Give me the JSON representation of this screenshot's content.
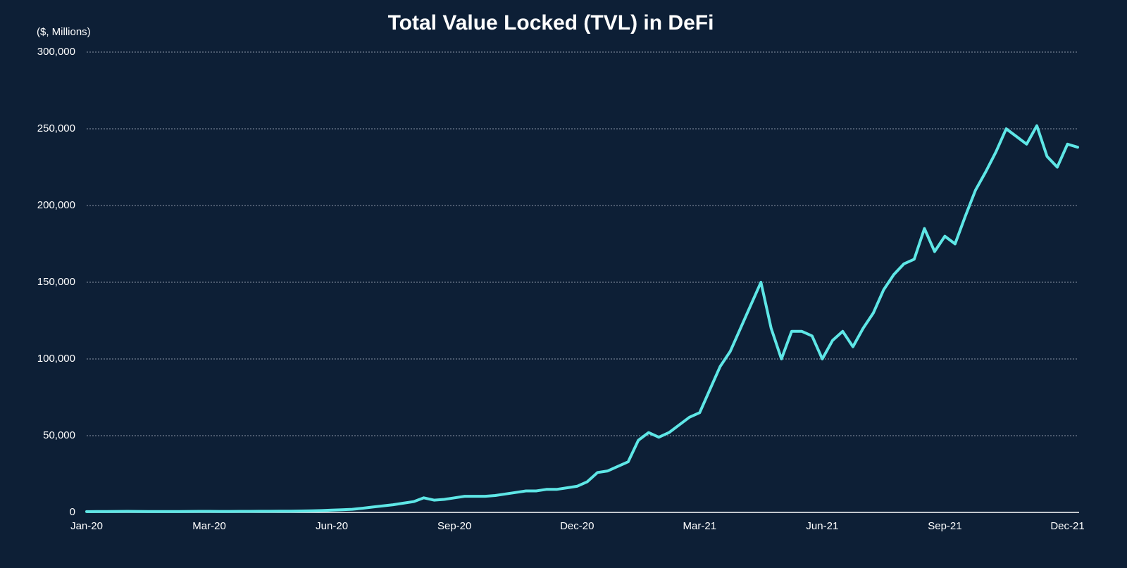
{
  "chart_data": {
    "type": "line",
    "title": "Total Value Locked (TVL) in DeFi",
    "y_label": "($, Millions)",
    "categories": [
      "Jan-20",
      null,
      null,
      null,
      null,
      null,
      null,
      null,
      null,
      null,
      null,
      null,
      "Mar-20",
      null,
      null,
      null,
      null,
      null,
      null,
      null,
      null,
      null,
      null,
      null,
      "Jun-20",
      null,
      null,
      null,
      null,
      null,
      null,
      null,
      null,
      null,
      null,
      null,
      "Sep-20",
      null,
      null,
      null,
      null,
      null,
      null,
      null,
      null,
      null,
      null,
      null,
      "Dec-20",
      null,
      null,
      null,
      null,
      null,
      null,
      null,
      null,
      null,
      null,
      null,
      "Mar-21",
      null,
      null,
      null,
      null,
      null,
      null,
      null,
      null,
      null,
      null,
      null,
      "Jun-21",
      null,
      null,
      null,
      null,
      null,
      null,
      null,
      null,
      null,
      null,
      null,
      "Sep-21",
      null,
      null,
      null,
      null,
      null,
      null,
      null,
      null,
      null,
      null,
      null,
      "Dec-21",
      null
    ],
    "values": [
      500,
      550,
      600,
      650,
      700,
      650,
      600,
      550,
      550,
      600,
      650,
      700,
      700,
      650,
      650,
      700,
      700,
      750,
      750,
      800,
      800,
      900,
      1000,
      1200,
      1500,
      1700,
      2000,
      2700,
      3500,
      4200,
      5000,
      6000,
      7000,
      9500,
      8000,
      8500,
      9500,
      10500,
      10500,
      10500,
      11000,
      12000,
      13000,
      14000,
      14000,
      15000,
      15000,
      16000,
      17000,
      20000,
      26000,
      27000,
      30000,
      33000,
      47000,
      52000,
      49000,
      52000,
      57000,
      62000,
      65000,
      80000,
      95000,
      105000,
      120000,
      135000,
      150000,
      120000,
      100000,
      118000,
      118000,
      115000,
      100000,
      112000,
      118000,
      108000,
      120000,
      130000,
      145000,
      155000,
      162000,
      165000,
      185000,
      170000,
      180000,
      175000,
      193000,
      210000,
      222000,
      235000,
      250000,
      245000,
      240000,
      252000,
      232000,
      225000,
      240000,
      238000
    ],
    "color": "#5ee6e6",
    "ylim": [
      0,
      300000
    ],
    "yticks": [
      0,
      {
        "value": 50000,
        "label": "50,000"
      },
      {
        "value": 100000,
        "label": "100,000"
      },
      {
        "value": 150000,
        "label": "150,000"
      },
      {
        "value": 200000,
        "label": "200,000"
      },
      {
        "value": 250000,
        "label": "250,000"
      },
      {
        "value": 300000,
        "label": "300,000"
      }
    ],
    "grid": true
  }
}
